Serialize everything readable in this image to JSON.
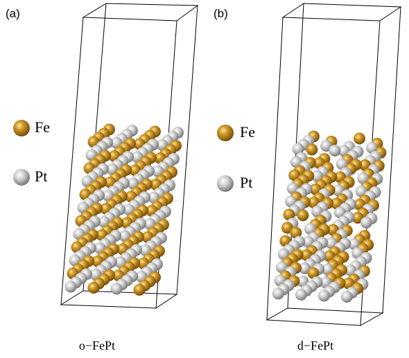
{
  "panels": [
    {
      "label": "(a)",
      "legend": [
        "Fe",
        "Pt"
      ],
      "caption": "o−FePt"
    },
    {
      "label": "(b)",
      "legend": [
        "Fe",
        "Pt"
      ],
      "caption": "d−FePt"
    }
  ]
}
